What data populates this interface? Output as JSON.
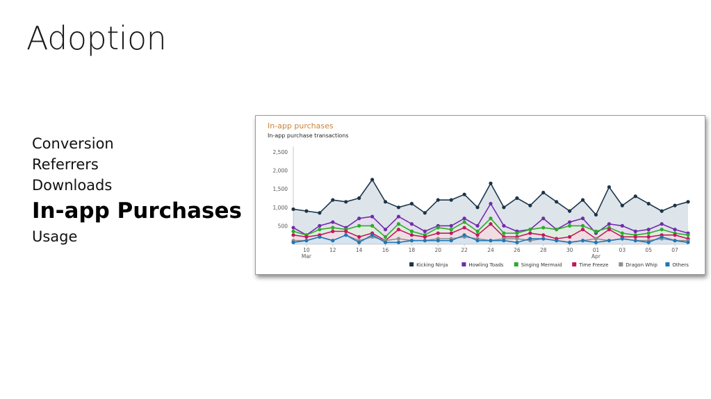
{
  "slide": {
    "title": "Adoption",
    "nav_items": [
      {
        "label": "Conversion",
        "active": false
      },
      {
        "label": "Referrers",
        "active": false
      },
      {
        "label": "Downloads",
        "active": false
      },
      {
        "label": "In-app Purchases",
        "active": true
      },
      {
        "label": "Usage",
        "active": false
      }
    ]
  },
  "chart_data": {
    "type": "area",
    "title": "In-app purchases",
    "subtitle": "In-app purchase transactions",
    "xlabel": "",
    "ylabel": "",
    "ylim": [
      0,
      2500
    ],
    "y_ticks": [
      500,
      1000,
      1500,
      2000,
      2500
    ],
    "y_tick_labels": [
      "500",
      "1,000",
      "1,500",
      "2,000",
      "2,500"
    ],
    "x": [
      "Mar 09",
      "Mar 10",
      "Mar 11",
      "Mar 12",
      "Mar 13",
      "Mar 14",
      "Mar 15",
      "Mar 16",
      "Mar 17",
      "Mar 18",
      "Mar 19",
      "Mar 20",
      "Mar 21",
      "Mar 22",
      "Mar 23",
      "Mar 24",
      "Mar 25",
      "Mar 26",
      "Mar 27",
      "Mar 28",
      "Mar 29",
      "Mar 30",
      "Mar 31",
      "Apr 01",
      "Apr 02",
      "Apr 03",
      "Apr 04",
      "Apr 05",
      "Apr 06",
      "Apr 07",
      "Apr 08"
    ],
    "x_ticks": [
      {
        "index": 1,
        "label": "10",
        "sub": "Mar"
      },
      {
        "index": 3,
        "label": "12",
        "sub": ""
      },
      {
        "index": 5,
        "label": "14",
        "sub": ""
      },
      {
        "index": 7,
        "label": "16",
        "sub": ""
      },
      {
        "index": 9,
        "label": "18",
        "sub": ""
      },
      {
        "index": 11,
        "label": "20",
        "sub": ""
      },
      {
        "index": 13,
        "label": "22",
        "sub": ""
      },
      {
        "index": 15,
        "label": "24",
        "sub": ""
      },
      {
        "index": 17,
        "label": "26",
        "sub": ""
      },
      {
        "index": 19,
        "label": "28",
        "sub": ""
      },
      {
        "index": 21,
        "label": "30",
        "sub": ""
      },
      {
        "index": 23,
        "label": "01",
        "sub": "Apr"
      },
      {
        "index": 25,
        "label": "03",
        "sub": ""
      },
      {
        "index": 27,
        "label": "05",
        "sub": ""
      },
      {
        "index": 29,
        "label": "07",
        "sub": ""
      }
    ],
    "grid": false,
    "legend_position": "bottom-right",
    "series": [
      {
        "name": "Kicking Ninja",
        "color": "#1c3448",
        "fill": "#d2dbe3",
        "values": [
          950,
          900,
          850,
          1200,
          1150,
          1250,
          1750,
          1150,
          1000,
          1100,
          850,
          1200,
          1200,
          1350,
          1000,
          1650,
          1000,
          1250,
          1050,
          1400,
          1150,
          900,
          1200,
          800,
          1550,
          1050,
          1300,
          1100,
          900,
          1050,
          1150
        ]
      },
      {
        "name": "Howling Toads",
        "color": "#6f2da8",
        "fill": "#e6dcef",
        "values": [
          450,
          250,
          500,
          600,
          450,
          700,
          750,
          400,
          750,
          550,
          350,
          500,
          500,
          700,
          500,
          1100,
          500,
          350,
          400,
          700,
          400,
          600,
          700,
          300,
          550,
          500,
          350,
          400,
          550,
          400,
          300
        ]
      },
      {
        "name": "Singing Mermaid",
        "color": "#2eaa2e",
        "fill": "#dff0dc",
        "values": [
          350,
          250,
          400,
          450,
          400,
          500,
          500,
          200,
          550,
          350,
          250,
          450,
          400,
          600,
          350,
          700,
          300,
          300,
          400,
          450,
          400,
          500,
          500,
          350,
          450,
          300,
          250,
          300,
          400,
          300,
          250
        ]
      },
      {
        "name": "Time Freeze",
        "color": "#c2185b",
        "fill": "#f6d8e4",
        "values": [
          250,
          200,
          250,
          350,
          350,
          200,
          300,
          100,
          400,
          250,
          200,
          300,
          300,
          450,
          250,
          550,
          200,
          200,
          300,
          250,
          150,
          200,
          400,
          150,
          400,
          200,
          200,
          200,
          250,
          250,
          150
        ]
      },
      {
        "name": "Dragon Whip",
        "color": "#8f8f8f",
        "fill": "#e8e8e8",
        "values": [
          100,
          100,
          200,
          100,
          250,
          100,
          200,
          100,
          150,
          100,
          100,
          150,
          150,
          200,
          150,
          100,
          150,
          150,
          100,
          150,
          100,
          50,
          100,
          150,
          100,
          150,
          100,
          100,
          150,
          100,
          100
        ]
      },
      {
        "name": "Others",
        "color": "#1f77b4",
        "fill": "#cfe2f3",
        "values": [
          50,
          100,
          200,
          100,
          250,
          50,
          250,
          50,
          50,
          100,
          100,
          100,
          100,
          250,
          100,
          100,
          100,
          50,
          150,
          150,
          100,
          50,
          100,
          50,
          100,
          150,
          100,
          50,
          200,
          100,
          50
        ]
      }
    ]
  }
}
